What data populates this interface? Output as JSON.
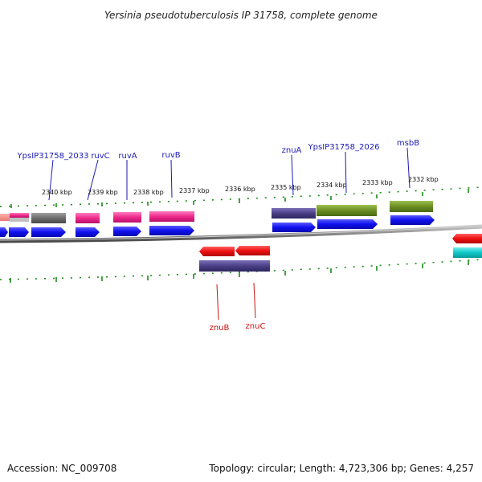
{
  "title": "Yersinia pseudotuberculosis IP 31758, complete genome",
  "footer": {
    "accession": "Accession: NC_009708",
    "summary": "Topology: circular; Length: 4,723,306 bp; Genes: 4,257"
  },
  "ruler": {
    "labels": [
      "2340 kbp",
      "2339 kbp",
      "2338 kbp",
      "2337 kbp",
      "2336 kbp",
      "2335 kbp",
      "2334 kbp",
      "2333 kbp",
      "2332 kbp"
    ]
  },
  "genes_upper": [
    "YpsIP31758_2033",
    "ruvC",
    "ruvA",
    "ruvB",
    "znuA",
    "YpsIP31758_2026",
    "msbB"
  ],
  "genes_lower": [
    "znuB",
    "znuC"
  ],
  "colors": {
    "pink": "#ee2a8a",
    "gray": "#6b6b6b",
    "indigo": "#4b3f86",
    "olive": "#6b8e23",
    "blue": "#1010ee",
    "red": "#ee1010",
    "cyan": "#10c8c8",
    "tick": "#1a8a1a",
    "backbone": "#8a8a8a",
    "upper_label": "#1a1ab8",
    "lower_label": "#cc1010"
  }
}
